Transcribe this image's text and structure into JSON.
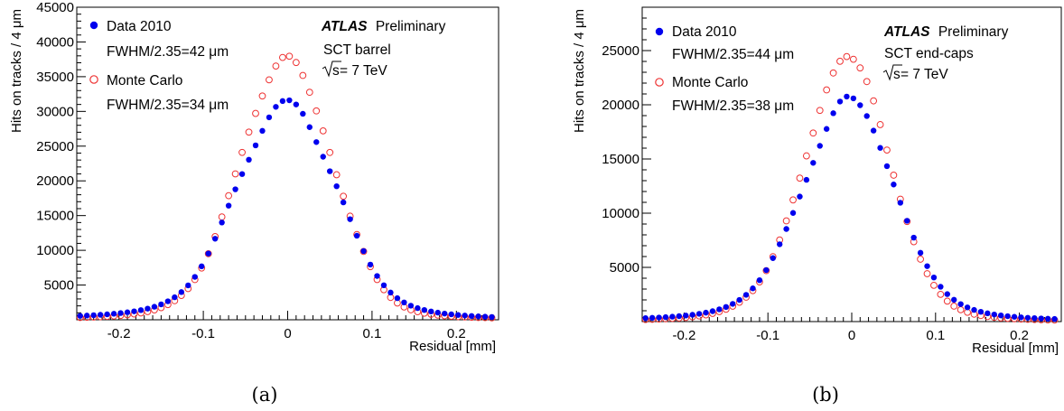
{
  "panels": [
    {
      "caption": "(a)",
      "annotation": {
        "experiment": "ATLAS",
        "status": "Preliminary",
        "detector": "SCT barrel",
        "energy_sqrt": "√s",
        "energy_rest": " = 7 TeV"
      },
      "legend": [
        {
          "label": "Data 2010",
          "sublabel": "FWHM/2.35=42 μm",
          "marker": "filled-circle",
          "color": "#0000ee"
        },
        {
          "label": "Monte Carlo",
          "sublabel": "FWHM/2.35=34 μm",
          "marker": "open-circle",
          "color": "#ee3333"
        }
      ]
    },
    {
      "caption": "(b)",
      "annotation": {
        "experiment": "ATLAS",
        "status": "Preliminary",
        "detector": "SCT end-caps",
        "energy_sqrt": "√s",
        "energy_rest": " = 7 TeV"
      },
      "legend": [
        {
          "label": "Data 2010",
          "sublabel": "FWHM/2.35=44 μm",
          "marker": "filled-circle",
          "color": "#0000ee"
        },
        {
          "label": "Monte Carlo",
          "sublabel": "FWHM/2.35=38 μm",
          "marker": "open-circle",
          "color": "#ee3333"
        }
      ]
    }
  ],
  "chart_data": [
    {
      "type": "scatter",
      "xlabel": "Residual [mm]",
      "ylabel": "Hits on tracks / 4 μm",
      "xlim": [
        -0.25,
        0.25
      ],
      "ylim": [
        0,
        45000
      ],
      "xticks": [
        -0.2,
        -0.1,
        0,
        0.1,
        0.2
      ],
      "xtick_labels": [
        "-0.2",
        "-0.1",
        "0",
        "0.1",
        "0.2"
      ],
      "yticks": [
        5000,
        10000,
        15000,
        20000,
        25000,
        30000,
        35000,
        40000,
        45000
      ],
      "ytick_labels": [
        "5000",
        "10000",
        "15000",
        "20000",
        "25000",
        "30000",
        "35000",
        "40000",
        "45000"
      ],
      "series": [
        {
          "name": "Data 2010",
          "color": "#0000ee",
          "marker": "filled-circle",
          "x": [
            -0.246,
            -0.238,
            -0.23,
            -0.222,
            -0.214,
            -0.206,
            -0.198,
            -0.19,
            -0.182,
            -0.174,
            -0.166,
            -0.158,
            -0.15,
            -0.142,
            -0.134,
            -0.126,
            -0.118,
            -0.11,
            -0.102,
            -0.094,
            -0.086,
            -0.078,
            -0.07,
            -0.062,
            -0.054,
            -0.046,
            -0.038,
            -0.03,
            -0.022,
            -0.014,
            -0.006,
            0.002,
            0.01,
            0.018,
            0.026,
            0.034,
            0.042,
            0.05,
            0.058,
            0.066,
            0.074,
            0.082,
            0.09,
            0.098,
            0.106,
            0.114,
            0.122,
            0.13,
            0.138,
            0.146,
            0.154,
            0.162,
            0.17,
            0.178,
            0.186,
            0.194,
            0.202,
            0.21,
            0.218,
            0.226,
            0.234,
            0.242
          ],
          "y": [
            560,
            606,
            657,
            716,
            785,
            866,
            962,
            1077,
            1217,
            1389,
            1603,
            1874,
            2219,
            2664,
            3240,
            3986,
            4949,
            6173,
            7698,
            9538,
            11667,
            14006,
            16429,
            18786,
            20979,
            23046,
            25110,
            27202,
            29145,
            30655,
            31491,
            31598,
            30999,
            29659,
            27735,
            25583,
            23474,
            21385,
            19225,
            16899,
            14479,
            12099,
            9894,
            7947,
            6303,
            4967,
            3917,
            3109,
            2495,
            2030,
            1677,
            1406,
            1195,
            1027,
            892,
            782,
            690,
            612,
            546,
            490,
            442,
            399
          ]
        },
        {
          "name": "Monte Carlo",
          "color": "#ee3333",
          "marker": "open-circle",
          "x": [
            -0.246,
            -0.238,
            -0.23,
            -0.222,
            -0.214,
            -0.206,
            -0.198,
            -0.19,
            -0.182,
            -0.174,
            -0.166,
            -0.158,
            -0.15,
            -0.142,
            -0.134,
            -0.126,
            -0.118,
            -0.11,
            -0.102,
            -0.094,
            -0.086,
            -0.078,
            -0.07,
            -0.062,
            -0.054,
            -0.046,
            -0.038,
            -0.03,
            -0.022,
            -0.014,
            -0.006,
            0.002,
            0.01,
            0.018,
            0.026,
            0.034,
            0.042,
            0.05,
            0.058,
            0.066,
            0.074,
            0.082,
            0.09,
            0.098,
            0.106,
            0.114,
            0.122,
            0.13,
            0.138,
            0.146,
            0.154,
            0.162,
            0.17,
            0.178,
            0.186,
            0.194,
            0.202,
            0.21,
            0.218,
            0.226,
            0.234,
            0.242
          ],
          "y": [
            330,
            360,
            395,
            436,
            486,
            547,
            621,
            714,
            831,
            980,
            1172,
            1421,
            1747,
            2177,
            2745,
            3497,
            4490,
            5785,
            7446,
            9510,
            11982,
            14805,
            17862,
            21007,
            24095,
            27018,
            29710,
            32223,
            34551,
            36532,
            37768,
            37949,
            37040,
            35176,
            32754,
            30074,
            27198,
            24087,
            20881,
            17784,
            14915,
            12275,
            9832,
            7644,
            5796,
            4325,
            3213,
            2410,
            1841,
            1440,
            1153,
            944,
            788,
            670,
            578,
            506,
            449,
            402,
            364,
            332,
            305,
            282
          ]
        }
      ]
    },
    {
      "type": "scatter",
      "xlabel": "Residual [mm]",
      "ylabel": "Hits on tracks / 4 μm",
      "xlim": [
        -0.25,
        0.25
      ],
      "ylim": [
        0,
        29000
      ],
      "xticks": [
        -0.2,
        -0.1,
        0,
        0.1,
        0.2
      ],
      "xtick_labels": [
        "-0.2",
        "-0.1",
        "0",
        "0.1",
        "0.2"
      ],
      "yticks": [
        5000,
        10000,
        15000,
        20000,
        25000
      ],
      "ytick_labels": [
        "5000",
        "10000",
        "15000",
        "20000",
        "25000"
      ],
      "series": [
        {
          "name": "Data 2010",
          "color": "#0000ee",
          "marker": "filled-circle",
          "x": [
            -0.246,
            -0.238,
            -0.23,
            -0.222,
            -0.214,
            -0.206,
            -0.198,
            -0.19,
            -0.182,
            -0.174,
            -0.166,
            -0.158,
            -0.15,
            -0.142,
            -0.134,
            -0.126,
            -0.118,
            -0.11,
            -0.102,
            -0.094,
            -0.086,
            -0.078,
            -0.07,
            -0.062,
            -0.054,
            -0.046,
            -0.038,
            -0.03,
            -0.022,
            -0.014,
            -0.006,
            0.002,
            0.01,
            0.018,
            0.026,
            0.034,
            0.042,
            0.05,
            0.058,
            0.066,
            0.074,
            0.082,
            0.09,
            0.098,
            0.106,
            0.114,
            0.122,
            0.13,
            0.138,
            0.146,
            0.154,
            0.162,
            0.17,
            0.178,
            0.186,
            0.194,
            0.202,
            0.21,
            0.218,
            0.226,
            0.234,
            0.242
          ],
          "y": [
            317,
            343,
            373,
            409,
            450,
            499,
            557,
            628,
            715,
            823,
            958,
            1130,
            1350,
            1633,
            1998,
            2467,
            3065,
            3818,
            4746,
            5855,
            7134,
            8542,
            10021,
            11531,
            13076,
            14643,
            16212,
            17774,
            19222,
            20298,
            20759,
            20592,
            19958,
            18961,
            17617,
            16024,
            14335,
            12645,
            10961,
            9300,
            7745,
            6344,
            5113,
            4068,
            3212,
            2535,
            2011,
            1612,
            1309,
            1077,
            900,
            762,
            654,
            567,
            497,
            440,
            392,
            352,
            318,
            289,
            264,
            242
          ]
        },
        {
          "name": "Monte Carlo",
          "color": "#ee3333",
          "marker": "open-circle",
          "x": [
            -0.246,
            -0.238,
            -0.23,
            -0.222,
            -0.214,
            -0.206,
            -0.198,
            -0.19,
            -0.182,
            -0.174,
            -0.166,
            -0.158,
            -0.15,
            -0.142,
            -0.134,
            -0.126,
            -0.118,
            -0.11,
            -0.102,
            -0.094,
            -0.086,
            -0.078,
            -0.07,
            -0.062,
            -0.054,
            -0.046,
            -0.038,
            -0.03,
            -0.022,
            -0.014,
            -0.006,
            0.002,
            0.01,
            0.018,
            0.026,
            0.034,
            0.042,
            0.05,
            0.058,
            0.066,
            0.074,
            0.082,
            0.09,
            0.098,
            0.106,
            0.114,
            0.122,
            0.13,
            0.138,
            0.146,
            0.154,
            0.162,
            0.17,
            0.178,
            0.186,
            0.194,
            0.202,
            0.21,
            0.218,
            0.226,
            0.234,
            0.242
          ],
          "y": [
            193,
            212,
            233,
            259,
            291,
            330,
            378,
            440,
            519,
            620,
            750,
            920,
            1140,
            1422,
            1782,
            2248,
            2857,
            3658,
            4696,
            5992,
            7532,
            9290,
            11224,
            13235,
            15285,
            17394,
            19482,
            21374,
            22933,
            24015,
            24447,
            24199,
            23400,
            22142,
            20361,
            18171,
            15824,
            13506,
            11294,
            9229,
            7368,
            5757,
            4418,
            3346,
            2513,
            1886,
            1426,
            1094,
            856,
            684,
            558,
            465,
            394,
            339,
            295,
            260,
            231,
            207,
            187,
            170,
            155,
            142
          ]
        }
      ]
    }
  ]
}
